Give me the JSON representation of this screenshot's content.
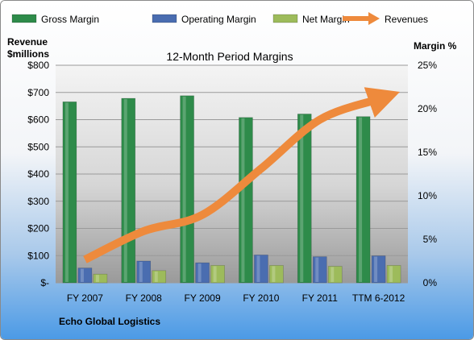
{
  "chart_data": {
    "type": "bar",
    "title": "12-Month Period Margins",
    "company": "Echo Global Logistics",
    "y_left_label_line1": "Revenue",
    "y_left_label_line2": "$millions",
    "y_right_label": "Margin %",
    "ylim_left": [
      0,
      800
    ],
    "ylim_right": [
      0,
      25
    ],
    "left_ticks": [
      "$-",
      "$100",
      "$200",
      "$300",
      "$400",
      "$500",
      "$600",
      "$700",
      "$800"
    ],
    "right_ticks": [
      "0%",
      "5%",
      "10%",
      "15%",
      "20%",
      "25%"
    ],
    "categories": [
      "FY 2007",
      "FY 2008",
      "FY 2009",
      "FY 2010",
      "FY 2011",
      "TTM 6-2012"
    ],
    "series": [
      {
        "name": "Gross Margin",
        "axis": "right",
        "color": "#2e8b4a",
        "values": [
          20.8,
          21.2,
          21.5,
          19.0,
          19.4,
          19.1
        ]
      },
      {
        "name": "Operating Margin",
        "axis": "right",
        "color": "#4a6db0",
        "values": [
          1.7,
          2.5,
          2.3,
          3.2,
          3.0,
          3.1
        ]
      },
      {
        "name": "Net Margin",
        "axis": "right",
        "color": "#9dbb5b",
        "values": [
          1.0,
          1.4,
          2.0,
          2.0,
          1.9,
          2.0
        ]
      },
      {
        "name": "Revenues",
        "axis": "left",
        "type": "line",
        "color": "#ee8a3c",
        "values": [
          85,
          190,
          250,
          420,
          600,
          675
        ]
      }
    ],
    "legend_position": "top",
    "grid": true
  }
}
